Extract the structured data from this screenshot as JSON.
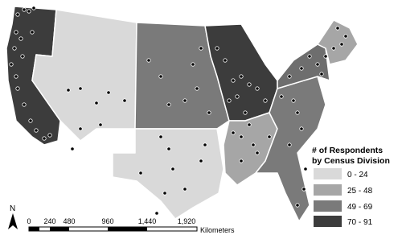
{
  "legend": {
    "title_lines": [
      "# of Respondents",
      "by Census Division"
    ],
    "items": [
      "0 - 24",
      "25 - 48",
      "49 - 69",
      "70 - 91"
    ]
  },
  "scale_bar": {
    "labels": [
      "0",
      "240",
      "480",
      "960",
      "1,440",
      "1,920"
    ],
    "unit": "Kilometers"
  },
  "north_arrow": "N"
}
